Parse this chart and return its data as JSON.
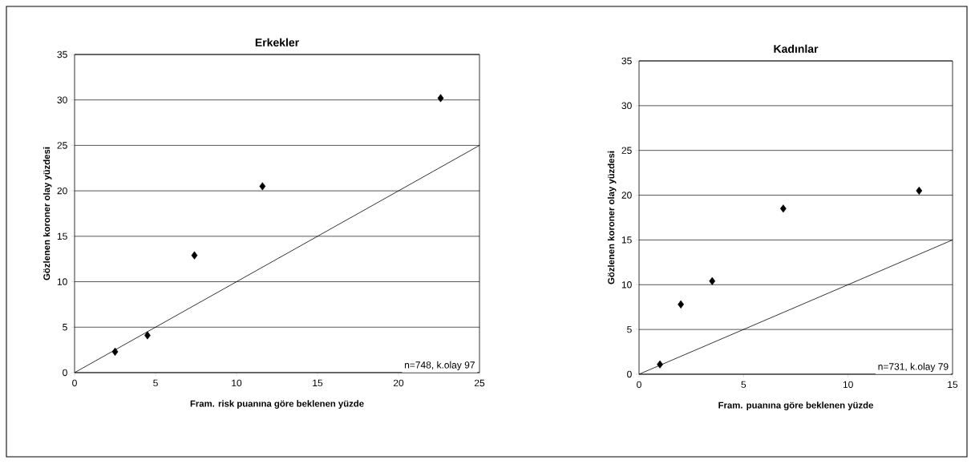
{
  "chart_data": [
    {
      "type": "scatter",
      "title": "Erkekler",
      "xlabel": "Fram. risk puanına göre beklenen yüzde",
      "ylabel": "Gözlenen koroner olay yüzdesi",
      "xlim": [
        0,
        25
      ],
      "ylim": [
        0,
        35
      ],
      "xticks": [
        0,
        5,
        10,
        15,
        20,
        25
      ],
      "yticks": [
        0,
        5,
        10,
        15,
        20,
        25,
        30,
        35
      ],
      "grid": "y",
      "marker": "diamond",
      "annotations": [
        "n=748, k.olay 97"
      ],
      "series": [
        {
          "type": "scatter",
          "color": "#000000",
          "x": [
            2.5,
            4.5,
            7.4,
            11.6,
            22.6
          ],
          "values": [
            2.3,
            4.1,
            12.9,
            20.5,
            30.2
          ]
        },
        {
          "type": "line",
          "color": "#000000",
          "marker": "none",
          "x": [
            0,
            25
          ],
          "values": [
            0,
            25
          ]
        }
      ]
    },
    {
      "type": "scatter",
      "title": "Kadınlar",
      "xlabel": "Fram. puanına göre beklenen yüzde",
      "ylabel": "Gözlenen koroner olay yüzdesi",
      "xlim": [
        0,
        15
      ],
      "ylim": [
        0,
        35
      ],
      "xticks": [
        0,
        5,
        10,
        15
      ],
      "yticks": [
        0,
        5,
        10,
        15,
        20,
        25,
        30,
        35
      ],
      "grid": "y",
      "marker": "diamond",
      "annotations": [
        "n=731, k.olay 79"
      ],
      "series": [
        {
          "type": "scatter",
          "color": "#000000",
          "x": [
            1.0,
            2.0,
            3.5,
            6.9,
            13.4
          ],
          "values": [
            1.1,
            7.8,
            10.4,
            18.5,
            20.5
          ]
        },
        {
          "type": "line",
          "color": "#000000",
          "marker": "none",
          "x": [
            0,
            15
          ],
          "values": [
            0,
            15
          ]
        }
      ]
    }
  ]
}
